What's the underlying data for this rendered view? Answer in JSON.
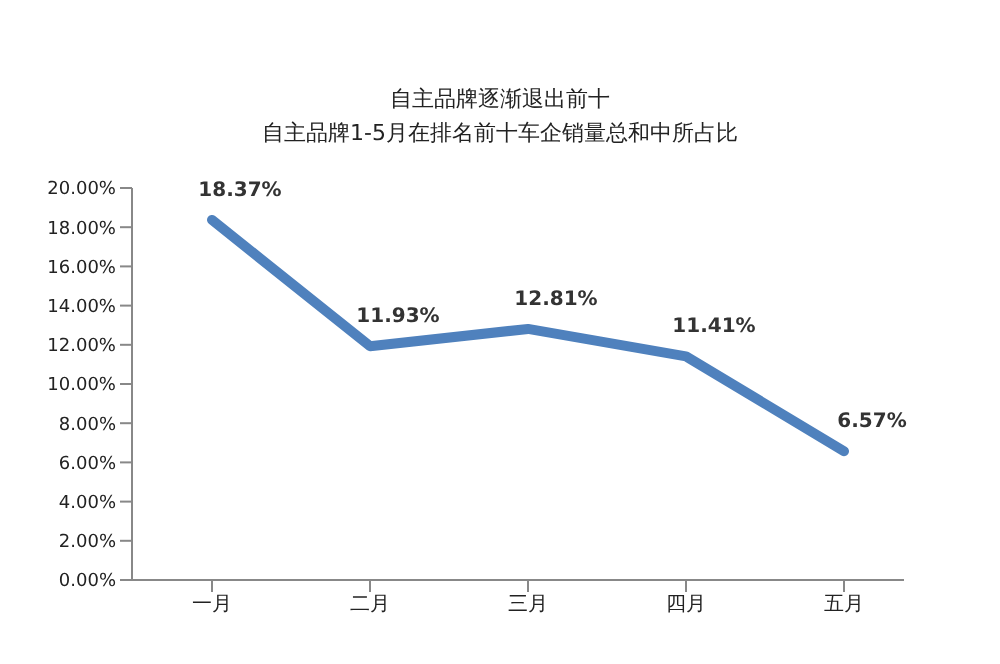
{
  "chart_data": {
    "type": "line",
    "title": "自主品牌逐渐退出前十",
    "subtitle": "自主品牌1-5月在排名前十车企销量总和中所占比",
    "categories": [
      "一月",
      "二月",
      "三月",
      "四月",
      "五月"
    ],
    "series": [
      {
        "color": "#4f81bd",
        "values": [
          18.37,
          11.93,
          12.81,
          11.41,
          6.57
        ],
        "value_labels": [
          "18.37%",
          "11.93%",
          "12.81%",
          "11.41%",
          "6.57%"
        ]
      }
    ],
    "ylim": [
      0,
      20
    ],
    "yticks": [
      {
        "value": 0,
        "label": "0.00%"
      },
      {
        "value": 2,
        "label": "2.00%"
      },
      {
        "value": 4,
        "label": "4.00%"
      },
      {
        "value": 6,
        "label": "6.00%"
      },
      {
        "value": 8,
        "label": "8.00%"
      },
      {
        "value": 10,
        "label": "10.00%"
      },
      {
        "value": 12,
        "label": "12.00%"
      },
      {
        "value": 14,
        "label": "14.00%"
      },
      {
        "value": 16,
        "label": "16.00%"
      },
      {
        "value": 18,
        "label": "18.00%"
      },
      {
        "value": 20,
        "label": "20.00%"
      }
    ],
    "grid": false,
    "legend": false,
    "marker": "none",
    "line_style": "solid"
  }
}
